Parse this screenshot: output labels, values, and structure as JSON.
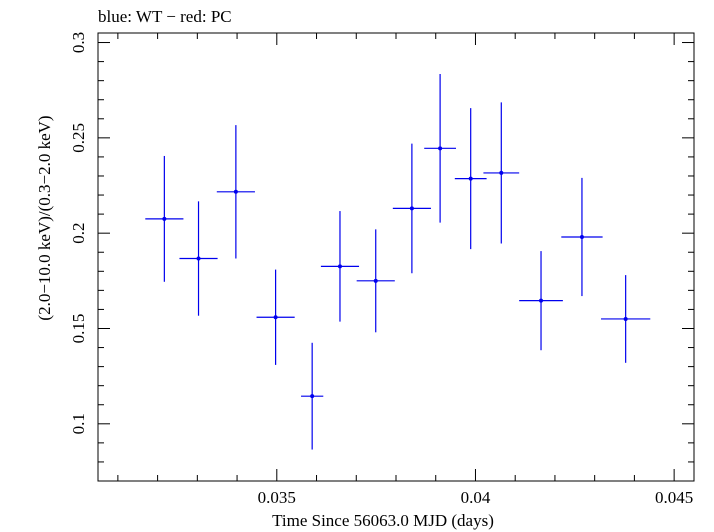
{
  "chart_data": {
    "type": "scatter",
    "title": "blue: WT − red: PC",
    "xlabel": "Time Since 56063.0 MJD (days)",
    "ylabel": "(2.0−10.0 keV)/(0.3−2.0 keV)",
    "xlim": [
      0.0305,
      0.0455
    ],
    "ylim": [
      0.07,
      0.305
    ],
    "xticks": [
      0.035,
      0.04,
      0.045
    ],
    "xtick_labels": [
      "0.035",
      "0.04",
      "0.045"
    ],
    "yticks": [
      0.1,
      0.15,
      0.2,
      0.25,
      0.3
    ],
    "ytick_labels": [
      "0.1",
      "0.15",
      "0.2",
      "0.25",
      "0.3"
    ],
    "series": [
      {
        "name": "WT",
        "color": "#0000ee",
        "points": [
          {
            "x": 0.03217,
            "y": 0.2075,
            "xerr": 0.00048,
            "yerr_lo": 0.033,
            "yerr_hi": 0.033
          },
          {
            "x": 0.03303,
            "y": 0.1867,
            "xerr": 0.00048,
            "yerr_lo": 0.03,
            "yerr_hi": 0.03
          },
          {
            "x": 0.03397,
            "y": 0.2217,
            "xerr": 0.00048,
            "yerr_lo": 0.035,
            "yerr_hi": 0.035
          },
          {
            "x": 0.03497,
            "y": 0.1559,
            "xerr": 0.00048,
            "yerr_lo": 0.025,
            "yerr_hi": 0.025
          },
          {
            "x": 0.03589,
            "y": 0.1145,
            "xerr": 0.00028,
            "yerr_lo": 0.028,
            "yerr_hi": 0.028
          },
          {
            "x": 0.03659,
            "y": 0.1826,
            "xerr": 0.00048,
            "yerr_lo": 0.029,
            "yerr_hi": 0.029
          },
          {
            "x": 0.03749,
            "y": 0.175,
            "xerr": 0.00048,
            "yerr_lo": 0.027,
            "yerr_hi": 0.027
          },
          {
            "x": 0.0384,
            "y": 0.213,
            "xerr": 0.00048,
            "yerr_lo": 0.034,
            "yerr_hi": 0.034
          },
          {
            "x": 0.03911,
            "y": 0.2445,
            "xerr": 0.0004,
            "yerr_lo": 0.039,
            "yerr_hi": 0.039
          },
          {
            "x": 0.03988,
            "y": 0.2286,
            "xerr": 0.0004,
            "yerr_lo": 0.037,
            "yerr_hi": 0.037
          },
          {
            "x": 0.04065,
            "y": 0.2316,
            "xerr": 0.00045,
            "yerr_lo": 0.037,
            "yerr_hi": 0.037
          },
          {
            "x": 0.04165,
            "y": 0.1646,
            "xerr": 0.00055,
            "yerr_lo": 0.026,
            "yerr_hi": 0.026
          },
          {
            "x": 0.04268,
            "y": 0.198,
            "xerr": 0.00052,
            "yerr_lo": 0.031,
            "yerr_hi": 0.031
          },
          {
            "x": 0.04378,
            "y": 0.155,
            "xerr": 0.00062,
            "yerr_lo": 0.023,
            "yerr_hi": 0.023
          }
        ]
      }
    ]
  }
}
